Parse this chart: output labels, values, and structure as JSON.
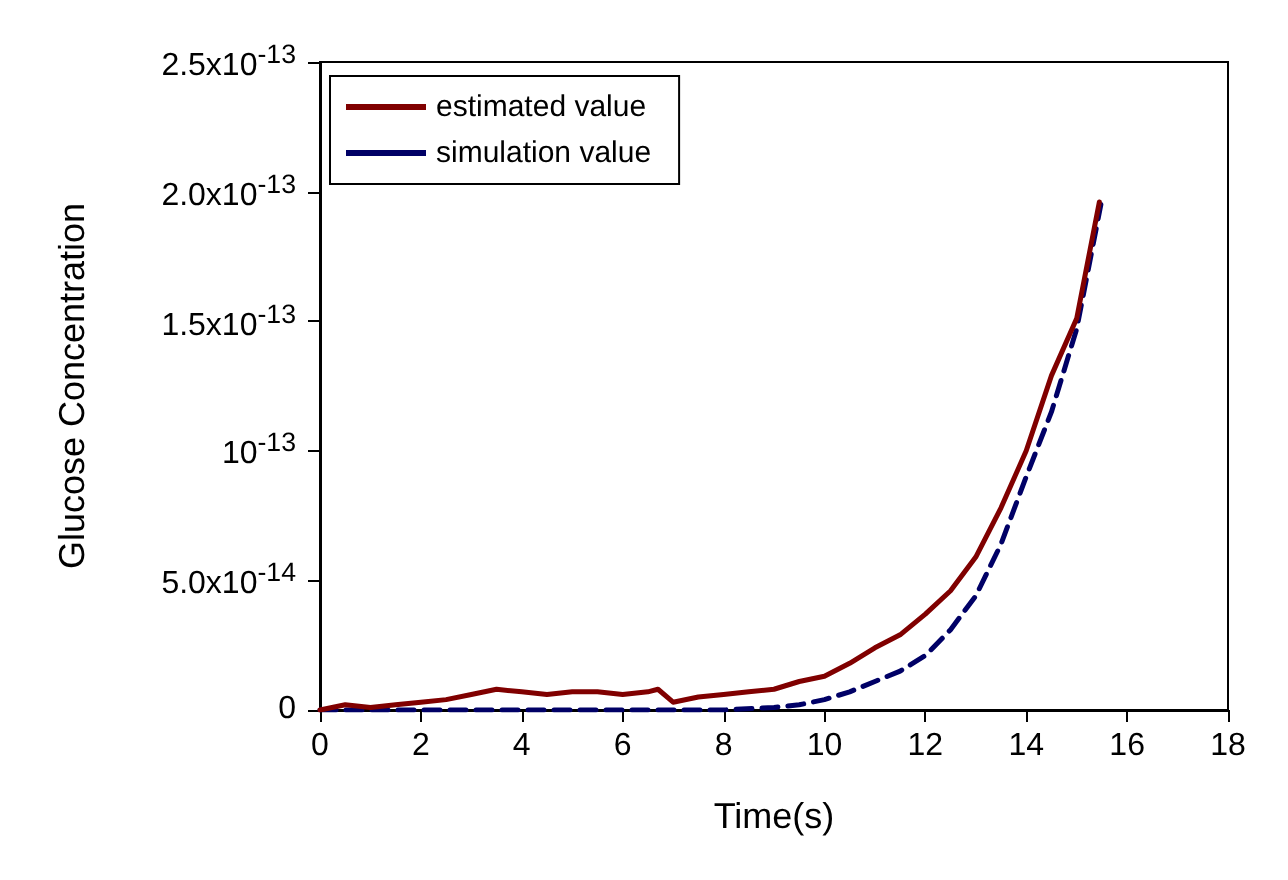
{
  "chart_data": {
    "type": "line",
    "xlabel": "Time(s)",
    "ylabel": "Glucose Concentration",
    "xlim": [
      0,
      18
    ],
    "xticks": [
      0,
      2,
      4,
      6,
      8,
      10,
      12,
      14,
      16,
      18
    ],
    "ylim": [
      0,
      2.5e-13
    ],
    "yticks": [
      {
        "value": 0,
        "label": "0"
      },
      {
        "value": 5e-14,
        "label": "5.0x10$^{-14}$"
      },
      {
        "value": 1e-13,
        "label": "10$^{-13}$"
      },
      {
        "value": 1.5e-13,
        "label": "1.5x10$^{-13}$"
      },
      {
        "value": 2e-13,
        "label": "2.0x10$^{-13}$"
      },
      {
        "value": 2.5e-13,
        "label": "2.5x10$^{-13}$"
      }
    ],
    "grid": false,
    "legend": "top left",
    "marker": "none",
    "series": [
      {
        "name": "estimated value",
        "color": "#800000",
        "line_style": "solid",
        "x": [
          0,
          0.5,
          1,
          1.5,
          2,
          2.5,
          3,
          3.5,
          4,
          4.5,
          5,
          5.5,
          6,
          6.5,
          6.7,
          7,
          7.5,
          8,
          8.5,
          9,
          9.5,
          10,
          10.5,
          11,
          11.5,
          12,
          12.5,
          13,
          13.5,
          14,
          14.5,
          15,
          15.45
        ],
        "values": [
          0,
          2e-15,
          1e-15,
          2e-15,
          3e-15,
          4e-15,
          6e-15,
          8e-15,
          7e-15,
          6e-15,
          7e-15,
          7e-15,
          6e-15,
          7e-15,
          8e-15,
          3e-15,
          5e-15,
          6e-15,
          7e-15,
          8e-15,
          1.1e-14,
          1.3e-14,
          1.8e-14,
          2.4e-14,
          2.9e-14,
          3.7e-14,
          4.6e-14,
          5.9e-14,
          7.8e-14,
          1e-13,
          1.29e-13,
          1.51e-13,
          1.96e-13
        ]
      },
      {
        "name": "simulation value",
        "color": "#000066",
        "line_style": "dashed",
        "x": [
          0,
          2,
          4,
          6,
          8,
          9,
          9.5,
          10,
          10.5,
          11,
          11.5,
          12,
          12.5,
          13,
          13.5,
          14,
          14.5,
          15,
          15.48
        ],
        "values": [
          0,
          0,
          0,
          0,
          0,
          1e-15,
          2e-15,
          4e-15,
          7e-15,
          1.1e-14,
          1.5e-14,
          2.1e-14,
          3.1e-14,
          4.4e-14,
          6.4e-14,
          9e-14,
          1.15e-13,
          1.47e-13,
          1.95e-13
        ]
      }
    ]
  }
}
